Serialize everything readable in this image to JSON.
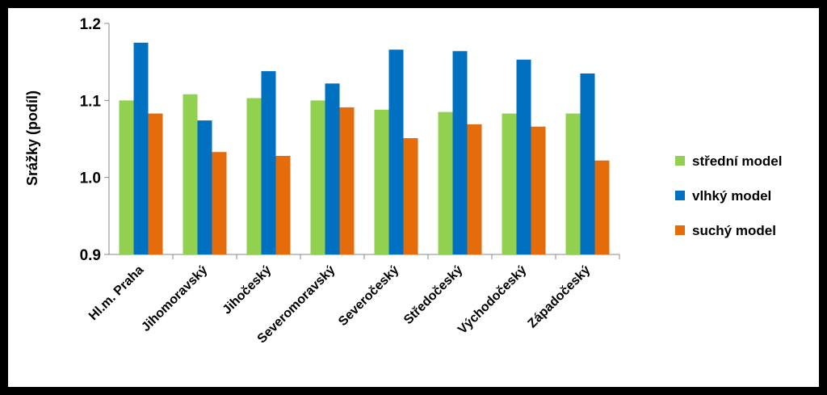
{
  "chart_data": {
    "type": "bar",
    "title": "",
    "xlabel": "",
    "ylabel": "Srážky (podíl)",
    "ylim": [
      0.9,
      1.2
    ],
    "yticks": [
      "0.9",
      "1.0",
      "1.1",
      "1.2"
    ],
    "categories": [
      "Hl.m. Praha",
      "Jihomoravský",
      "Jihočeský",
      "Severomoravský",
      "Severočeský",
      "Středočeský",
      "Východočeský",
      "Západočeský"
    ],
    "series": [
      {
        "name": "střední model",
        "color": "#92D050",
        "values": [
          1.1,
          1.108,
          1.103,
          1.1,
          1.088,
          1.085,
          1.083,
          1.083
        ]
      },
      {
        "name": "vlhký model",
        "color": "#0070C0",
        "values": [
          1.175,
          1.074,
          1.138,
          1.122,
          1.166,
          1.164,
          1.153,
          1.135
        ]
      },
      {
        "name": "suchý model",
        "color": "#E46C0A",
        "values": [
          1.083,
          1.033,
          1.028,
          1.091,
          1.051,
          1.069,
          1.066,
          1.022
        ]
      }
    ],
    "legend_position": "right",
    "grid": false
  }
}
